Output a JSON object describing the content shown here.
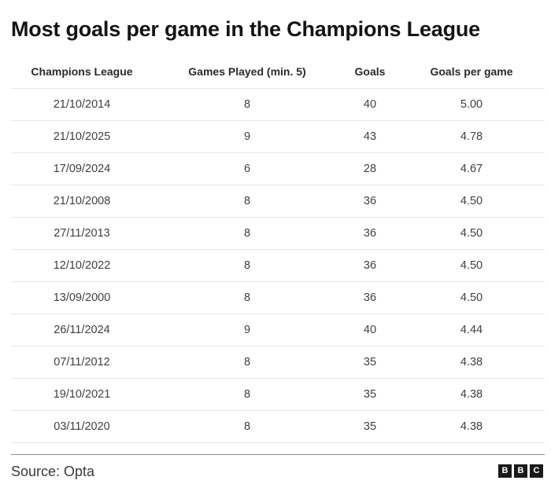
{
  "title": "Most goals per game in the Champions League",
  "source": "Source: Opta",
  "logo": {
    "letters": [
      "B",
      "B",
      "C"
    ]
  },
  "chart_data": {
    "type": "table",
    "title": "Most goals per game in the Champions League",
    "columns": [
      "Champions League",
      "Games Played (min. 5)",
      "Goals",
      "Goals per game"
    ],
    "rows": [
      [
        "21/10/2014",
        "8",
        "40",
        "5.00"
      ],
      [
        "21/10/2025",
        "9",
        "43",
        "4.78"
      ],
      [
        "17/09/2024",
        "6",
        "28",
        "4.67"
      ],
      [
        "21/10/2008",
        "8",
        "36",
        "4.50"
      ],
      [
        "27/11/2013",
        "8",
        "36",
        "4.50"
      ],
      [
        "12/10/2022",
        "8",
        "36",
        "4.50"
      ],
      [
        "13/09/2000",
        "8",
        "36",
        "4.50"
      ],
      [
        "26/11/2024",
        "9",
        "40",
        "4.44"
      ],
      [
        "07/11/2012",
        "8",
        "35",
        "4.38"
      ],
      [
        "19/10/2021",
        "8",
        "35",
        "4.38"
      ],
      [
        "03/11/2020",
        "8",
        "35",
        "4.38"
      ]
    ]
  }
}
